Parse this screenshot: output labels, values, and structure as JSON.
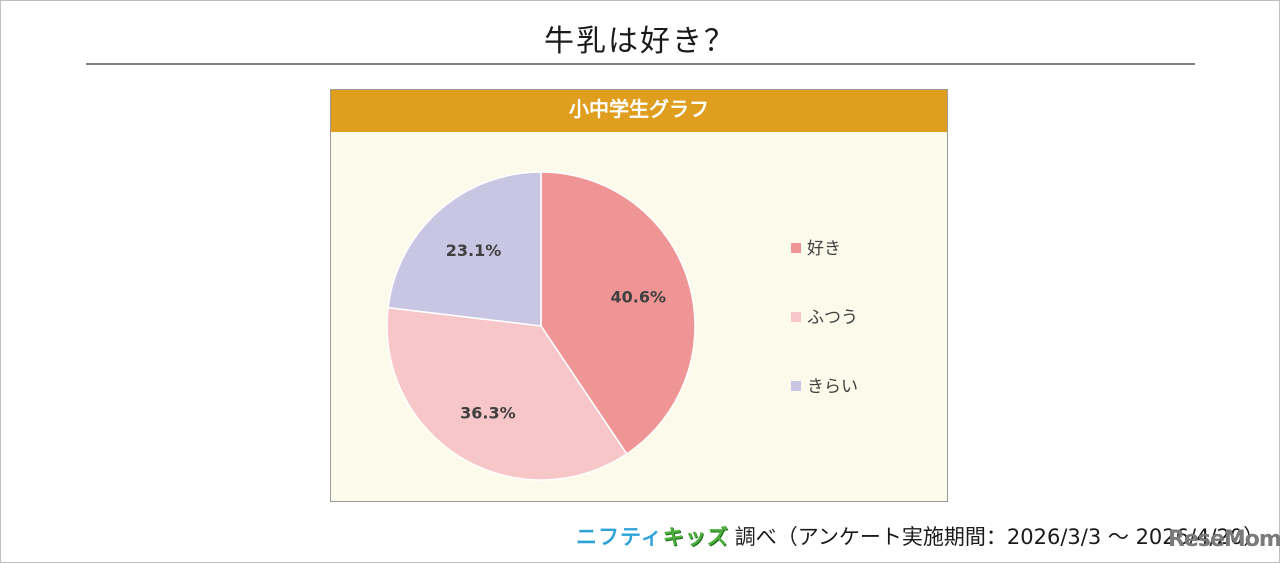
{
  "page": {
    "title": "牛乳は好き？",
    "footer_brand_part1": "ニフティ",
    "footer_brand_part2": "キッズ",
    "footer_credit": "調べ（アンケート実施期間：2026/3/3 ～ 2026/4/20）",
    "watermark": "ReseMom"
  },
  "colors": {
    "header_bar": "#e09e1e",
    "panel_bg": "#fcfaeb",
    "like": "#ef9595",
    "neutral": "#f6c6c8",
    "dislike": "#c8c6e2"
  },
  "chart_data": {
    "type": "pie",
    "title": "小中学生グラフ",
    "categories": [
      "好き",
      "ふつう",
      "きらい"
    ],
    "values": [
      40.6,
      36.3,
      23.1
    ],
    "labels": [
      "40.6%",
      "36.3%",
      "23.1%"
    ],
    "colors": [
      "#ef9595",
      "#f6c6c8",
      "#c8c6e2"
    ],
    "legend_position": "right"
  }
}
